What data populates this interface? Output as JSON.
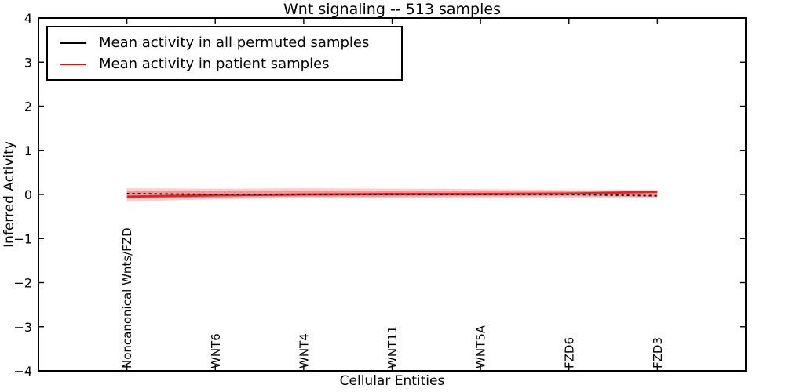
{
  "figure": {
    "title": "Wnt signaling -- 513 samples",
    "xlabel": "Cellular Entities",
    "ylabel": "Inferred Activity",
    "background_color": "#ffffff",
    "frame_color": "#000000"
  },
  "legend": {
    "position": "upper left",
    "items": [
      {
        "label": "Mean activity in all permuted samples",
        "color": "#000000",
        "line_style": "solid"
      },
      {
        "label": "Mean activity in patient samples",
        "color": "#ff0000",
        "line_style": "solid"
      }
    ]
  },
  "chart_data": {
    "type": "line",
    "title": "Wnt signaling -- 513 samples",
    "xlabel": "Cellular Entities",
    "ylabel": "Inferred Activity",
    "xlim": [
      -1,
      7
    ],
    "ylim": [
      -4,
      4
    ],
    "grid": false,
    "legend_position": "upper left",
    "y_ticks": {
      "values": [
        4,
        3,
        2,
        1,
        0,
        -1,
        -2,
        -3,
        -4
      ],
      "labels": [
        "4",
        "3",
        "2",
        "1",
        "0",
        "−1",
        "−2",
        "−3",
        "−4"
      ]
    },
    "x_ticks": {
      "values": [
        0,
        1,
        2,
        3,
        4,
        5,
        6
      ],
      "labels": [
        "Noncanonical Wnts/FZD",
        "WNT6",
        "WNT4",
        "WNT11",
        "WNT5A",
        "FZD6",
        "FZD3"
      ]
    },
    "x": [
      0,
      1,
      2,
      3,
      4,
      5,
      6
    ],
    "series": [
      {
        "name": "Mean activity in all permuted samples",
        "color": "#000000",
        "line_style": "dashed",
        "values": [
          0.02,
          0.0,
          0.0,
          0.0,
          0.0,
          0.0,
          -0.03
        ]
      },
      {
        "name": "Mean activity in patient samples",
        "color": "#e32222",
        "line_style": "solid",
        "values": [
          -0.05,
          -0.02,
          0.0,
          0.01,
          0.01,
          0.02,
          0.06
        ]
      }
    ],
    "bands": [
      {
        "name": "patient activity spread (outer)",
        "color": "#e32222",
        "opacity": 0.22,
        "upper": [
          0.14,
          0.13,
          0.14,
          0.13,
          0.12,
          0.1,
          0.1
        ],
        "lower": [
          -0.16,
          -0.11,
          -0.08,
          -0.08,
          -0.07,
          -0.07,
          -0.08
        ]
      },
      {
        "name": "patient activity spread (inner)",
        "color": "#e32222",
        "opacity": 0.32,
        "upper": [
          0.08,
          0.08,
          0.08,
          0.08,
          0.07,
          0.07,
          0.08
        ],
        "lower": [
          -0.1,
          -0.07,
          -0.05,
          -0.05,
          -0.04,
          -0.04,
          -0.05
        ]
      }
    ]
  }
}
